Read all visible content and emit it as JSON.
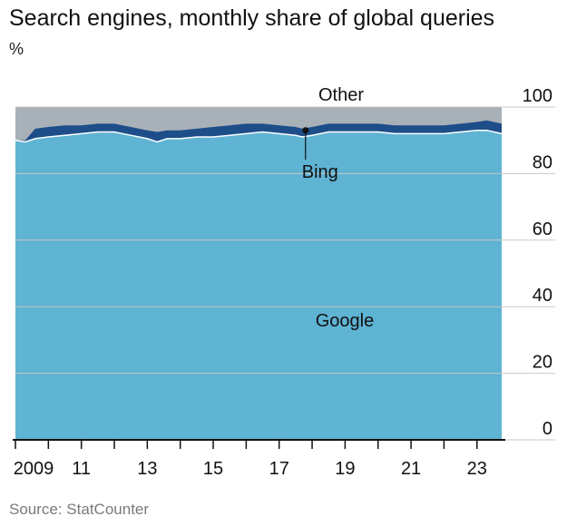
{
  "chart_data": {
    "type": "area",
    "title": "Search engines, monthly share of global queries",
    "unit_label": "%",
    "source": "Source: StatCounter",
    "y_ticks": [
      "100",
      "80",
      "60",
      "40",
      "20",
      "0"
    ],
    "y_tick_values": [
      100,
      80,
      60,
      40,
      20,
      0
    ],
    "x_ticks": [
      "2009",
      "11",
      "13",
      "15",
      "17",
      "19",
      "21",
      "23"
    ],
    "x_tick_values": [
      2009,
      2011,
      2013,
      2015,
      2017,
      2019,
      2021,
      2023
    ],
    "xlim": [
      2009,
      2023.75
    ],
    "ylim": [
      0,
      100
    ],
    "stacked": true,
    "series": [
      {
        "name": "Google",
        "color": "#5fb3d3",
        "points": [
          [
            2009.0,
            90.0
          ],
          [
            2009.3,
            89.5
          ],
          [
            2009.6,
            90.5
          ],
          [
            2010.0,
            91.0
          ],
          [
            2010.5,
            91.5
          ],
          [
            2011.0,
            92.0
          ],
          [
            2011.5,
            92.5
          ],
          [
            2012.0,
            92.5
          ],
          [
            2012.5,
            91.5
          ],
          [
            2013.0,
            90.5
          ],
          [
            2013.3,
            89.5
          ],
          [
            2013.6,
            90.5
          ],
          [
            2014.0,
            90.5
          ],
          [
            2014.5,
            91.0
          ],
          [
            2015.0,
            91.0
          ],
          [
            2015.5,
            91.5
          ],
          [
            2016.0,
            92.0
          ],
          [
            2016.5,
            92.5
          ],
          [
            2017.0,
            92.0
          ],
          [
            2017.5,
            91.5
          ],
          [
            2017.7,
            91.0
          ],
          [
            2018.0,
            91.5
          ],
          [
            2018.5,
            92.5
          ],
          [
            2019.0,
            92.5
          ],
          [
            2019.5,
            92.5
          ],
          [
            2020.0,
            92.5
          ],
          [
            2020.5,
            92.0
          ],
          [
            2021.0,
            92.0
          ],
          [
            2021.5,
            92.0
          ],
          [
            2022.0,
            92.0
          ],
          [
            2022.5,
            92.5
          ],
          [
            2023.0,
            93.0
          ],
          [
            2023.3,
            93.0
          ],
          [
            2023.75,
            92.0
          ]
        ]
      },
      {
        "name": "Bing",
        "color": "#1d4e89",
        "points": [
          [
            2009.0,
            0.0
          ],
          [
            2009.3,
            0.5
          ],
          [
            2009.6,
            3.0
          ],
          [
            2010.0,
            3.0
          ],
          [
            2010.5,
            3.0
          ],
          [
            2011.0,
            2.5
          ],
          [
            2011.5,
            2.5
          ],
          [
            2012.0,
            2.5
          ],
          [
            2012.5,
            2.5
          ],
          [
            2013.0,
            2.5
          ],
          [
            2013.3,
            3.0
          ],
          [
            2013.6,
            2.5
          ],
          [
            2014.0,
            2.5
          ],
          [
            2014.5,
            2.5
          ],
          [
            2015.0,
            3.0
          ],
          [
            2015.5,
            3.0
          ],
          [
            2016.0,
            3.0
          ],
          [
            2016.5,
            2.5
          ],
          [
            2017.0,
            2.5
          ],
          [
            2017.5,
            2.5
          ],
          [
            2017.7,
            2.5
          ],
          [
            2018.0,
            2.5
          ],
          [
            2018.5,
            2.5
          ],
          [
            2019.0,
            2.5
          ],
          [
            2019.5,
            2.5
          ],
          [
            2020.0,
            2.5
          ],
          [
            2020.5,
            2.5
          ],
          [
            2021.0,
            2.5
          ],
          [
            2021.5,
            2.5
          ],
          [
            2022.0,
            2.5
          ],
          [
            2022.5,
            2.5
          ],
          [
            2023.0,
            2.5
          ],
          [
            2023.3,
            3.0
          ],
          [
            2023.75,
            3.0
          ]
        ]
      },
      {
        "name": "Other",
        "color": "#a8b0b8",
        "fill_to_top": true
      }
    ],
    "annotations": [
      {
        "label": "Bing",
        "x": 2017.8
      }
    ],
    "grid": {
      "horizontal": true,
      "color": "#c8c8c8"
    },
    "y_axis_side": "right"
  }
}
